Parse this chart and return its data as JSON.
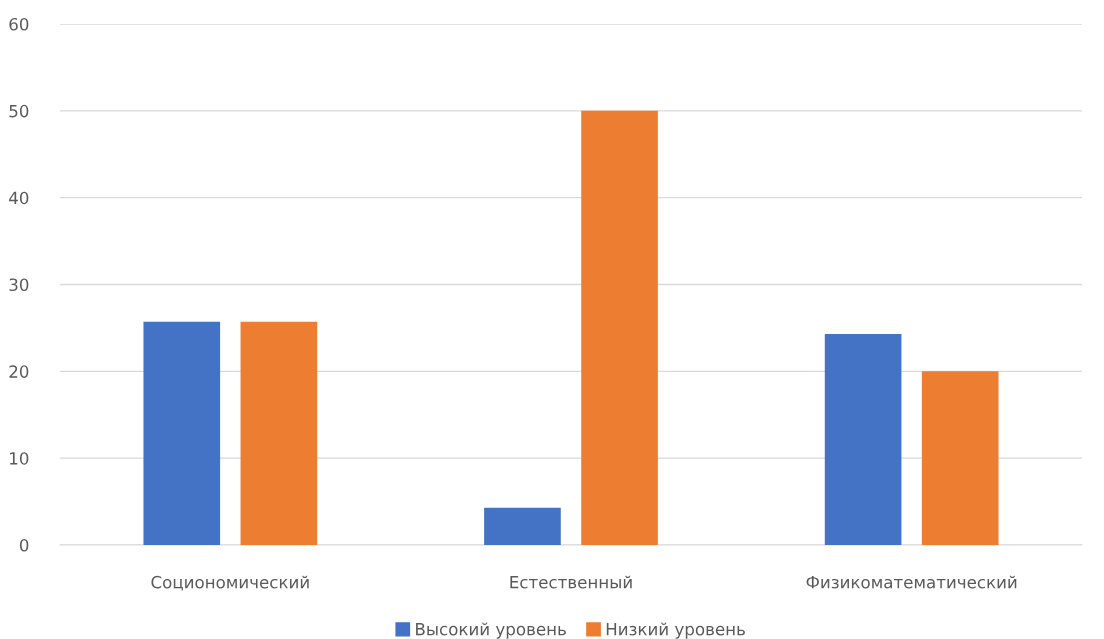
{
  "chart_data": {
    "type": "bar",
    "categories": [
      "Социономический",
      "Естественный",
      "Физикоматематический"
    ],
    "series": [
      {
        "name": "Высокий уровень",
        "color": "#4472c4",
        "values": [
          25.7,
          4.3,
          24.3
        ]
      },
      {
        "name": "Низкий уровень",
        "color": "#ed7d31",
        "values": [
          25.7,
          50,
          20
        ]
      }
    ],
    "ylim": [
      0,
      60
    ],
    "yticks": [
      0,
      10,
      20,
      30,
      40,
      50,
      60
    ],
    "grid": "y",
    "legend": "bottom"
  }
}
